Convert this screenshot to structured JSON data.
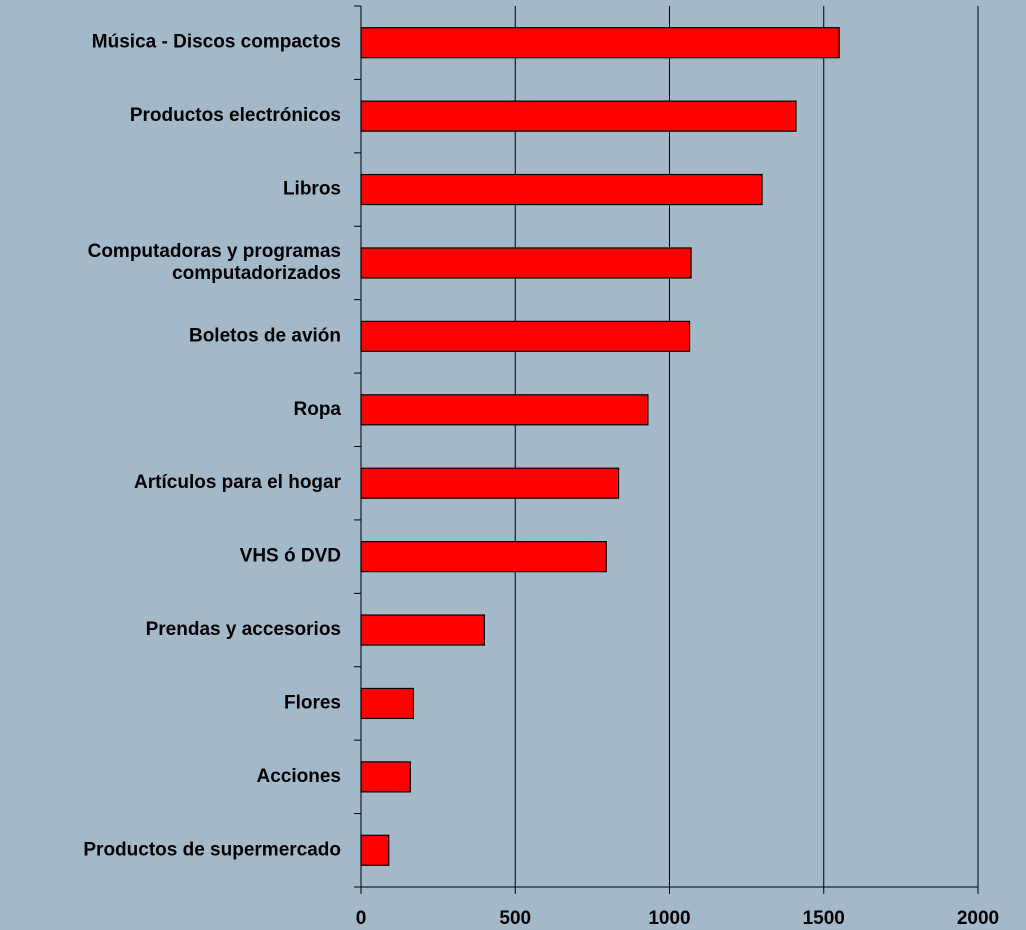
{
  "chart_data": {
    "type": "barh",
    "categories": [
      "Música - Discos compactos",
      "Productos electrónicos",
      "Libros",
      "Computadoras y programas\ncomputadorizados",
      "Boletos de avión",
      "Ropa",
      "Artículos para el hogar",
      "VHS ó DVD",
      "Prendas y accesorios",
      "Flores",
      "Acciones",
      "Productos de supermercado"
    ],
    "values": [
      1550,
      1410,
      1300,
      1070,
      1065,
      930,
      835,
      795,
      400,
      170,
      160,
      90
    ],
    "color": "#ff0000",
    "xlim": [
      0,
      2000
    ],
    "xticks": [
      0,
      500,
      1000,
      1500,
      2000
    ],
    "grid": true
  }
}
